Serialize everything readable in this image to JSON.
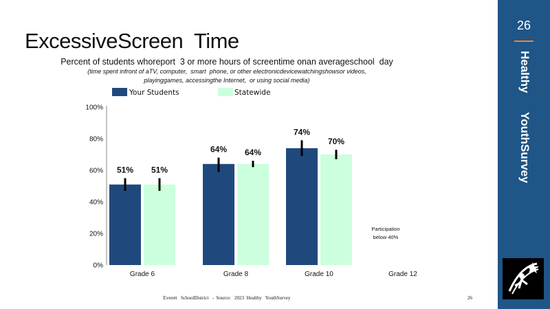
{
  "slide": {
    "title": "ExcessiveScreen  Time",
    "subtitle": "Percent of students whoreport  3 or more hours of screentime onan averageschool  day",
    "note_line1": "(time spent infront of aTV, computer,  smart  phone, or other electronicdevicewatchingshowsor videos,",
    "note_line2": "playinggames, accessingthe Internet,  or using social media)",
    "footer": "Everett   SchoolDistrict   -  Source:   2023  Healthy   YouthSurvey",
    "footer_page": "26"
  },
  "sidebar": {
    "page_number": "26",
    "label_1": "Healthy",
    "label_2": "YouthSurvey",
    "accent_color": "#ff7f2a",
    "background_color": "#1f5587",
    "logo_icon": "star-figure-logo-icon"
  },
  "chart_data": {
    "type": "bar",
    "categories": [
      "Grade 6",
      "Grade 8",
      "Grade 10",
      "Grade 12"
    ],
    "series": [
      {
        "name": "Your Students",
        "values": [
          51,
          64,
          74,
          null
        ],
        "labels": [
          "51%",
          "64%",
          "74%",
          ""
        ],
        "color": "#1f497d"
      },
      {
        "name": "Statewide",
        "values": [
          51,
          64,
          70,
          null
        ],
        "labels": [
          "51%",
          "64%",
          "70%",
          ""
        ],
        "color": "#ccffdd"
      }
    ],
    "error_bars": [
      [
        [
          47,
          55
        ],
        [
          59,
          68
        ],
        [
          69,
          79
        ],
        null
      ],
      [
        [
          47,
          55
        ],
        [
          62,
          66
        ],
        [
          67,
          73
        ],
        null
      ]
    ],
    "ylim": [
      0,
      100
    ],
    "yticks": [
      "0%",
      "20%",
      "40%",
      "60%",
      "80%",
      "100%"
    ],
    "annotation_line1": "Participation",
    "annotation_line2": "below 40%",
    "legend_position": "top",
    "grid": false
  }
}
